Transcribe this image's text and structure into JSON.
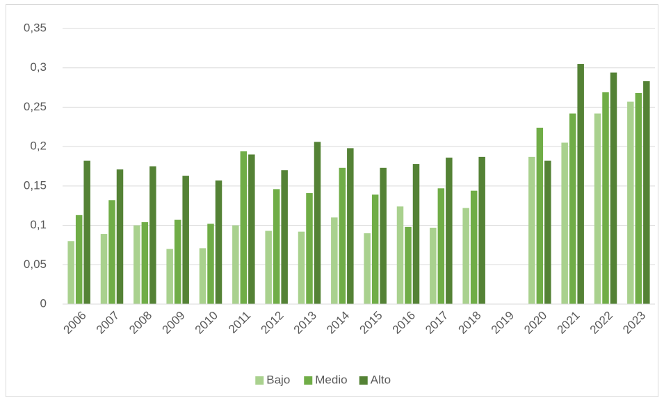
{
  "chart_data": {
    "type": "bar",
    "categories": [
      "2006",
      "2007",
      "2008",
      "2009",
      "2010",
      "2011",
      "2012",
      "2013",
      "2014",
      "2015",
      "2016",
      "2017",
      "2018",
      "2019",
      "2020",
      "2021",
      "2022",
      "2023"
    ],
    "series": [
      {
        "name": "Bajo",
        "color": "#a9d18e",
        "values": [
          0.08,
          0.089,
          0.1,
          0.07,
          0.071,
          0.1,
          0.093,
          0.092,
          0.11,
          0.09,
          0.124,
          0.097,
          0.122,
          null,
          0.187,
          0.205,
          0.242,
          0.257
        ]
      },
      {
        "name": "Medio",
        "color": "#70ad47",
        "values": [
          0.113,
          0.132,
          0.104,
          0.107,
          0.102,
          0.194,
          0.146,
          0.141,
          0.173,
          0.139,
          0.098,
          0.147,
          0.144,
          null,
          0.224,
          0.242,
          0.269,
          0.268
        ]
      },
      {
        "name": "Alto",
        "color": "#548235",
        "values": [
          0.182,
          0.171,
          0.175,
          0.163,
          0.157,
          0.19,
          0.17,
          0.206,
          0.198,
          0.173,
          0.178,
          0.186,
          0.187,
          null,
          0.182,
          0.305,
          0.294,
          0.283
        ]
      }
    ],
    "ylim": [
      0,
      0.35
    ],
    "yticks": [
      0,
      {
        "value": 0.05,
        "label": "0,05"
      },
      {
        "value": 0.1,
        "label": "0,1"
      },
      {
        "value": 0.15,
        "label": "0,15"
      },
      {
        "value": 0.2,
        "label": "0,2"
      },
      {
        "value": 0.25,
        "label": "0,25"
      },
      {
        "value": 0.3,
        "label": "0,3"
      },
      {
        "value": 0.35,
        "label": "0,35"
      }
    ],
    "grid": true,
    "legend": "bottom"
  }
}
